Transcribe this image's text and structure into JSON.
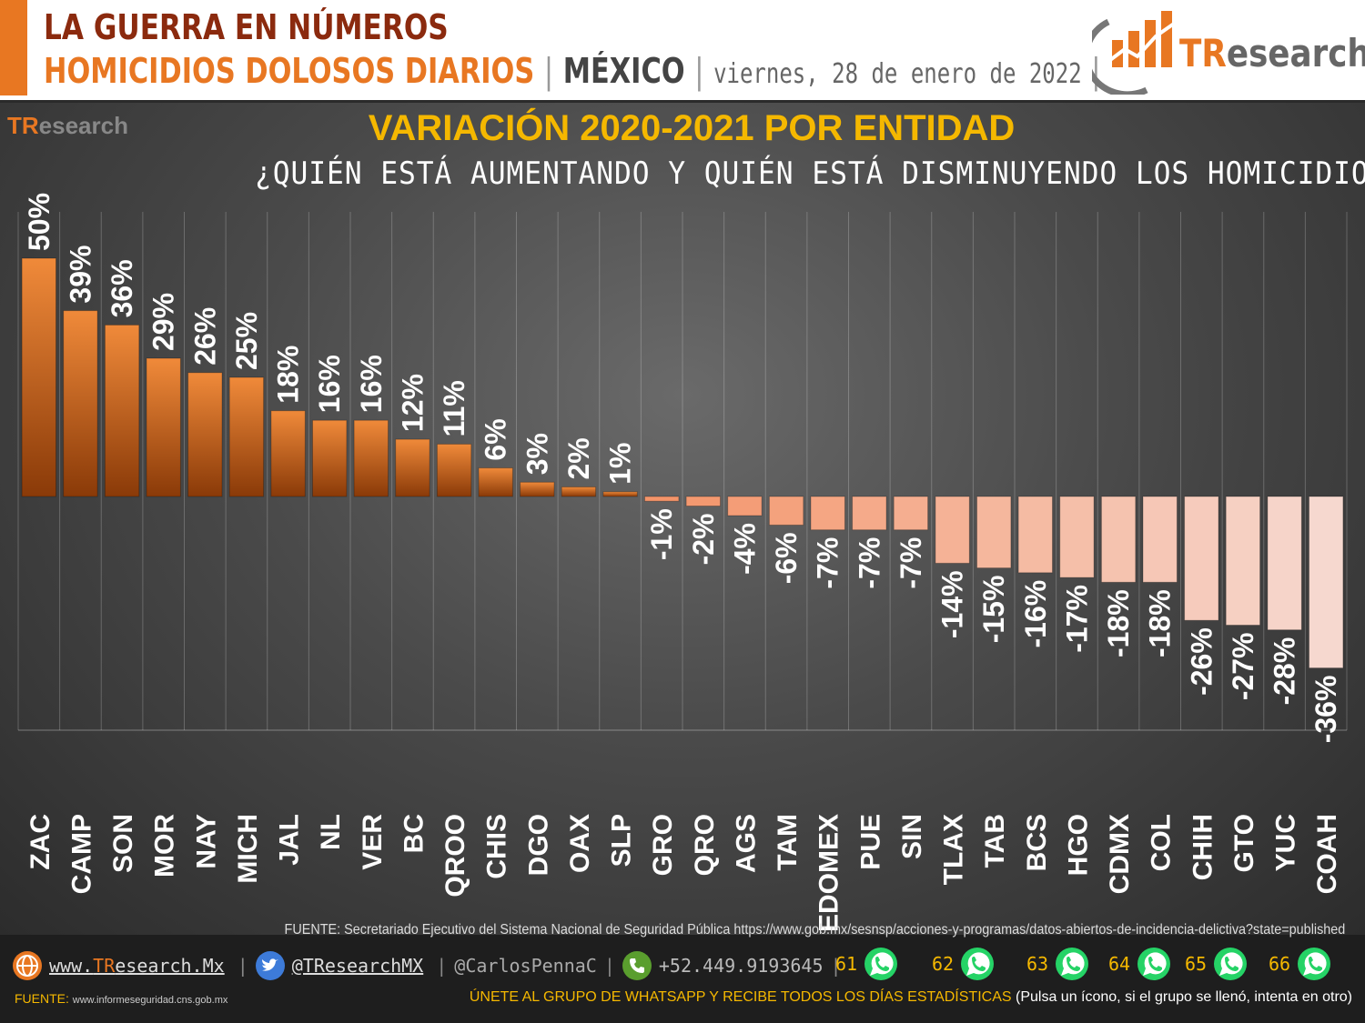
{
  "header": {
    "line1": "LA GUERRA EN NÚMEROS",
    "line2_a": "HOMICIDIOS DOLOSOS DIARIOS",
    "line2_b": "MÉXICO",
    "line2_date": "viernes, 28 de enero de 2022",
    "sep": "|",
    "logo_tr": "TR",
    "logo_rest": "esearch"
  },
  "colors": {
    "accent": "#e87722",
    "title_yellow": "#f5b800",
    "bar_pos_top": "#e87722",
    "bar_pos_bottom": "#8a3a08",
    "bar_neg_start": "#f4956a",
    "bar_neg_end": "#f6d8cf"
  },
  "chart_data": {
    "type": "bar",
    "title": "VARIACIÓN 2020-2021 POR ENTIDAD",
    "subtitle": "¿QUIÉN ESTÁ AUMENTANDO Y QUIÉN ESTÁ DISMINUYENDO LOS HOMICIDIOS?",
    "categories": [
      "ZAC",
      "CAMP",
      "SON",
      "MOR",
      "NAY",
      "MICH",
      "JAL",
      "NL",
      "VER",
      "BC",
      "QROO",
      "CHIS",
      "DGO",
      "OAX",
      "SLP",
      "GRO",
      "QRO",
      "AGS",
      "TAM",
      "EDOMEX",
      "PUE",
      "SIN",
      "TLAX",
      "TAB",
      "BCS",
      "HGO",
      "CDMX",
      "COL",
      "CHIH",
      "GTO",
      "YUC",
      "COAH"
    ],
    "values": [
      50,
      39,
      36,
      29,
      26,
      25,
      18,
      16,
      16,
      12,
      11,
      6,
      3,
      2,
      1,
      -1,
      -2,
      -4,
      -6,
      -7,
      -7,
      -7,
      -14,
      -15,
      -16,
      -17,
      -18,
      -18,
      -26,
      -27,
      -28,
      -36
    ],
    "labels": [
      "50%",
      "39%",
      "36%",
      "29%",
      "26%",
      "25%",
      "18%",
      "16%",
      "16%",
      "12%",
      "11%",
      "6%",
      "3%",
      "2%",
      "1%",
      "-1%",
      "-2%",
      "-4%",
      "-6%",
      "-7%",
      "-7%",
      "-7%",
      "-14%",
      "-15%",
      "-16%",
      "-17%",
      "-18%",
      "-18%",
      "-26%",
      "-27%",
      "-28%",
      "-36%"
    ],
    "ylim": [
      -36,
      50
    ],
    "grid": "vertical"
  },
  "footer": {
    "fuente_long": "FUENTE: Secretariado Ejecutivo del Sistema Nacional de Seguridad Pública https://www.gob.mx/sesnsp/acciones-y-programas/datos-abiertos-de-incidencia-delictiva?state=published",
    "web_tr": "TR",
    "web_pre": "www.",
    "web_post": "esearch.Mx",
    "twitter": "@TResearchMX",
    "handle": "@CarlosPennaC",
    "phone": "+52.449.9193645",
    "bar": "|",
    "groups": [
      "61",
      "62",
      "63",
      "64",
      "65",
      "66"
    ],
    "fuente_small_label": "FUENTE:",
    "fuente_small_url": "www.informeseguridad.cns.gob.mx",
    "unete": "ÚNETE AL GRUPO DE WHATSAPP Y RECIBE TODOS LOS DÍAS ESTADÍSTICAS",
    "unete_paren": "(Pulsa un ícono, si el grupo se llenó, intenta en otro)"
  }
}
